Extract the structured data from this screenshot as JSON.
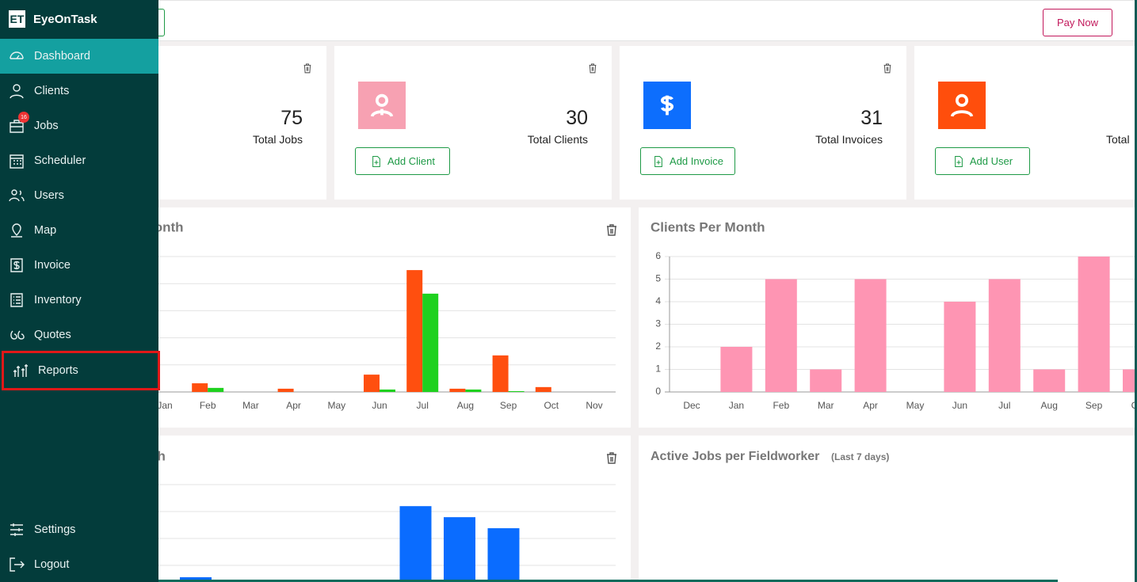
{
  "sidebar": {
    "logo": "ET",
    "brand": "EyeOnTask",
    "menu": [
      "Dashboard",
      "Clients",
      "Jobs",
      "Scheduler",
      "Users",
      "Map",
      "Invoice",
      "Inventory",
      "Quotes",
      "Reports"
    ],
    "jobs_badge": "16",
    "footer": [
      "Settings",
      "Logout"
    ]
  },
  "header": {
    "pay_now": "Pay Now"
  },
  "cards": [
    {
      "count": "75",
      "label": "Total Jobs"
    },
    {
      "count": "30",
      "label": "Total Clients",
      "button": "Add Client"
    },
    {
      "count": "31",
      "label": "Total Invoices",
      "button": "Add Invoice"
    },
    {
      "label": "Total",
      "button": "Add User"
    }
  ],
  "chart_data": [
    {
      "type": "bar",
      "title": "Jobs Per Month",
      "categories": [
        "Jan",
        "Feb",
        "Mar",
        "Apr",
        "May",
        "Jun",
        "Jul",
        "Aug",
        "Sep",
        "Oct",
        "Nov"
      ],
      "series": [
        {
          "color": "#ff4f0f",
          "values": [
            0,
            0.32,
            0,
            0.12,
            0,
            0.64,
            4.5,
            0.12,
            1.35,
            0.18,
            0
          ]
        },
        {
          "color": "#1fd11f",
          "values": [
            0,
            0.15,
            0,
            0,
            0,
            0.09,
            3.63,
            0.09,
            0.03,
            0,
            0
          ]
        }
      ],
      "ylim": [
        0,
        5
      ]
    },
    {
      "type": "bar",
      "title": "Clients Per Month",
      "categories": [
        "Dec",
        "Jan",
        "Feb",
        "Mar",
        "Apr",
        "May",
        "Jun",
        "Jul",
        "Aug",
        "Sep",
        "Oct"
      ],
      "values": [
        0,
        2,
        5,
        1,
        5,
        0,
        4,
        5,
        1,
        6,
        1
      ],
      "color": "#fe95b3",
      "ylim": [
        0,
        6
      ],
      "yticks": [
        0,
        1,
        2,
        3,
        4,
        5,
        6
      ],
      "grid": true
    },
    {
      "type": "bar",
      "title": "Invoices Per Month",
      "categories": [
        null,
        null,
        null,
        null,
        null,
        null,
        null,
        null
      ],
      "values": [
        0.56,
        0,
        0,
        0,
        0,
        3.2,
        2.79,
        2.38
      ],
      "color": "#0a6cff",
      "ylim": [
        0,
        4
      ]
    }
  ],
  "active_jobs": {
    "title": "Active Jobs per Fieldworker",
    "subtitle": "(Last 7 days)"
  }
}
